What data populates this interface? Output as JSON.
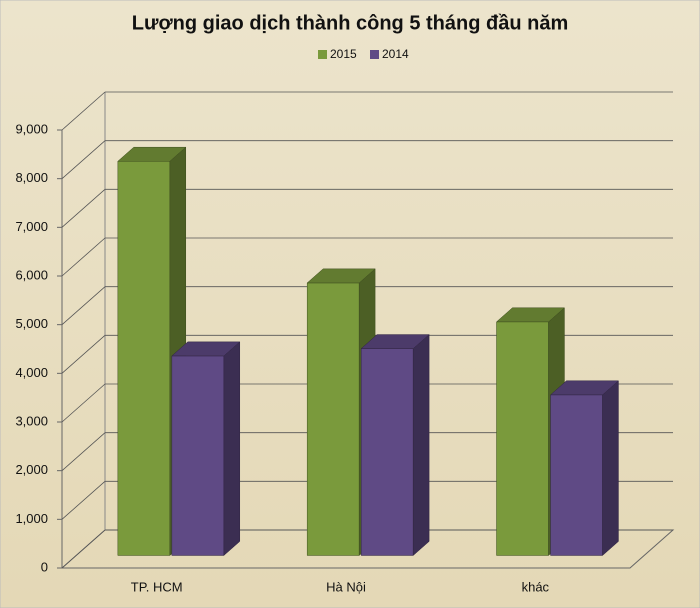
{
  "chart_data": {
    "type": "bar3d",
    "title": "Lượng giao dịch thành công 5 tháng đầu năm",
    "categories": [
      "TP. HCM",
      "Hà Nội",
      "khác"
    ],
    "series": [
      {
        "name": "2015",
        "color": "#7a9a3c",
        "values": [
          8100,
          5600,
          4800
        ]
      },
      {
        "name": "2014",
        "color": "#5f4a85",
        "values": [
          4100,
          4250,
          3300
        ]
      }
    ],
    "ylim": [
      0,
      9000
    ],
    "yticks": [
      0,
      {
        "value": 1000,
        "label": "1,000"
      },
      {
        "value": 2000,
        "label": "2,000"
      },
      {
        "value": 3000,
        "label": "3,000"
      },
      {
        "value": 4000,
        "label": "4,000"
      },
      {
        "value": 5000,
        "label": "5,000"
      },
      {
        "value": 6000,
        "label": "6,000"
      },
      {
        "value": 7000,
        "label": "7,000"
      },
      {
        "value": 8000,
        "label": "8,000"
      },
      {
        "value": 9000,
        "label": "9,000"
      }
    ],
    "grid": true
  }
}
